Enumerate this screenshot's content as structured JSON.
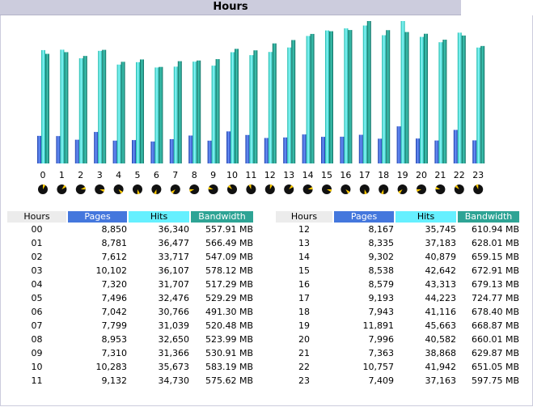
{
  "title": "Hours",
  "colors": {
    "pages": "#4477dd",
    "hits": "#66f0ff",
    "bandwidth": "#2ea495",
    "title_bg": "#ccccdd"
  },
  "table_headers": {
    "hours": "Hours",
    "pages": "Pages",
    "hits": "Hits",
    "bandwidth": "Bandwidth"
  },
  "chart_data": {
    "type": "bar",
    "categories": [
      "0",
      "1",
      "2",
      "3",
      "4",
      "5",
      "6",
      "7",
      "8",
      "9",
      "10",
      "11",
      "12",
      "13",
      "14",
      "15",
      "16",
      "17",
      "18",
      "19",
      "20",
      "21",
      "22",
      "23"
    ],
    "series": [
      {
        "name": "Pages",
        "values": [
          8850,
          8781,
          7612,
          10102,
          7320,
          7496,
          7042,
          7799,
          8953,
          7310,
          10283,
          9132,
          8167,
          8335,
          9302,
          8538,
          8579,
          9193,
          7943,
          11891,
          7996,
          7363,
          10757,
          7409
        ]
      },
      {
        "name": "Hits",
        "values": [
          36340,
          36477,
          33717,
          36107,
          31707,
          32476,
          30766,
          31039,
          32650,
          31366,
          35673,
          34730,
          35745,
          37183,
          40879,
          42642,
          43313,
          44223,
          41116,
          45663,
          40582,
          38868,
          41942,
          37163
        ]
      },
      {
        "name": "Bandwidth",
        "unit": "MB",
        "values": [
          557.91,
          566.49,
          547.09,
          578.12,
          517.29,
          529.29,
          491.3,
          520.48,
          523.99,
          530.91,
          583.19,
          575.62,
          610.94,
          628.01,
          659.15,
          672.91,
          679.13,
          724.77,
          678.4,
          668.87,
          660.01,
          629.87,
          651.05,
          597.75
        ]
      }
    ],
    "clock_icons": true
  },
  "rows": [
    {
      "hour": "00",
      "pages": "8,850",
      "hits": "36,340",
      "bandwidth": "557.91 MB"
    },
    {
      "hour": "01",
      "pages": "8,781",
      "hits": "36,477",
      "bandwidth": "566.49 MB"
    },
    {
      "hour": "02",
      "pages": "7,612",
      "hits": "33,717",
      "bandwidth": "547.09 MB"
    },
    {
      "hour": "03",
      "pages": "10,102",
      "hits": "36,107",
      "bandwidth": "578.12 MB"
    },
    {
      "hour": "04",
      "pages": "7,320",
      "hits": "31,707",
      "bandwidth": "517.29 MB"
    },
    {
      "hour": "05",
      "pages": "7,496",
      "hits": "32,476",
      "bandwidth": "529.29 MB"
    },
    {
      "hour": "06",
      "pages": "7,042",
      "hits": "30,766",
      "bandwidth": "491.30 MB"
    },
    {
      "hour": "07",
      "pages": "7,799",
      "hits": "31,039",
      "bandwidth": "520.48 MB"
    },
    {
      "hour": "08",
      "pages": "8,953",
      "hits": "32,650",
      "bandwidth": "523.99 MB"
    },
    {
      "hour": "09",
      "pages": "7,310",
      "hits": "31,366",
      "bandwidth": "530.91 MB"
    },
    {
      "hour": "10",
      "pages": "10,283",
      "hits": "35,673",
      "bandwidth": "583.19 MB"
    },
    {
      "hour": "11",
      "pages": "9,132",
      "hits": "34,730",
      "bandwidth": "575.62 MB"
    },
    {
      "hour": "12",
      "pages": "8,167",
      "hits": "35,745",
      "bandwidth": "610.94 MB"
    },
    {
      "hour": "13",
      "pages": "8,335",
      "hits": "37,183",
      "bandwidth": "628.01 MB"
    },
    {
      "hour": "14",
      "pages": "9,302",
      "hits": "40,879",
      "bandwidth": "659.15 MB"
    },
    {
      "hour": "15",
      "pages": "8,538",
      "hits": "42,642",
      "bandwidth": "672.91 MB"
    },
    {
      "hour": "16",
      "pages": "8,579",
      "hits": "43,313",
      "bandwidth": "679.13 MB"
    },
    {
      "hour": "17",
      "pages": "9,193",
      "hits": "44,223",
      "bandwidth": "724.77 MB"
    },
    {
      "hour": "18",
      "pages": "7,943",
      "hits": "41,116",
      "bandwidth": "678.40 MB"
    },
    {
      "hour": "19",
      "pages": "11,891",
      "hits": "45,663",
      "bandwidth": "668.87 MB"
    },
    {
      "hour": "20",
      "pages": "7,996",
      "hits": "40,582",
      "bandwidth": "660.01 MB"
    },
    {
      "hour": "21",
      "pages": "7,363",
      "hits": "38,868",
      "bandwidth": "629.87 MB"
    },
    {
      "hour": "22",
      "pages": "10,757",
      "hits": "41,942",
      "bandwidth": "651.05 MB"
    },
    {
      "hour": "23",
      "pages": "7,409",
      "hits": "37,163",
      "bandwidth": "597.75 MB"
    }
  ]
}
